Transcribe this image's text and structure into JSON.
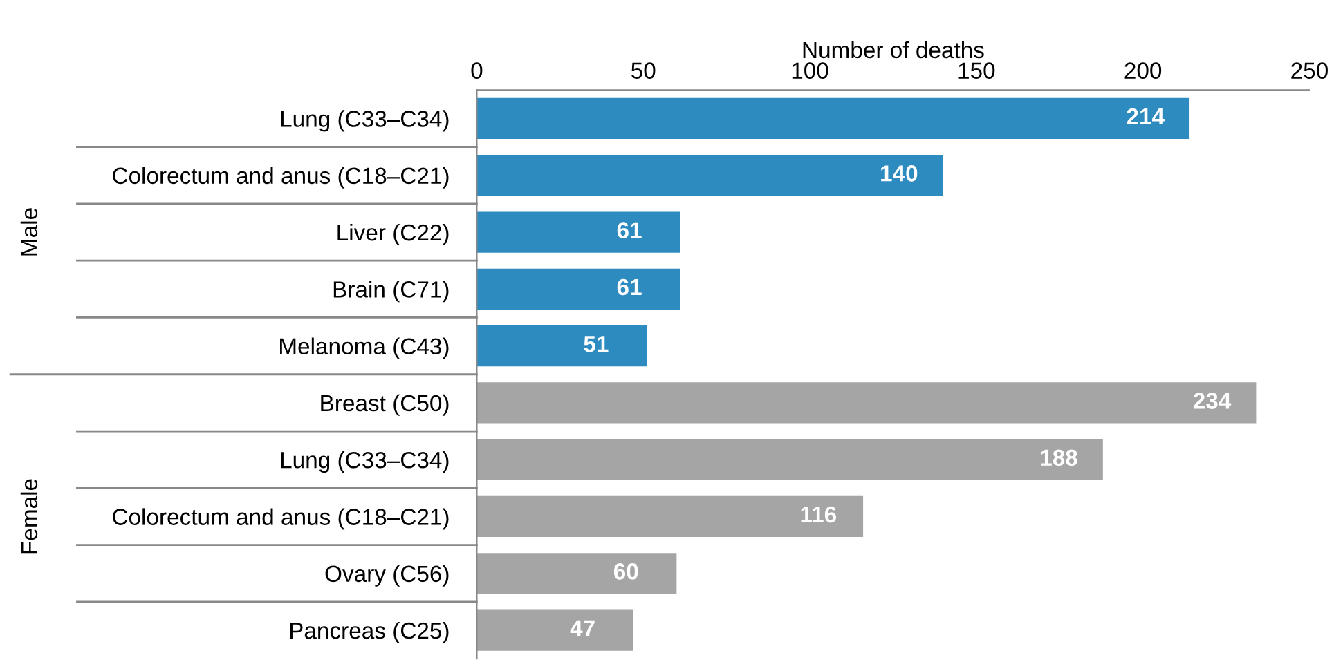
{
  "chart_data": {
    "type": "bar",
    "orientation": "horizontal",
    "xlabel": "Number of deaths",
    "categories": [
      "Lung (C33–C34)",
      "Colorectum and anus (C18–C21)",
      "Liver (C22)",
      "Brain (C71)",
      "Melanoma (C43)",
      "Breast (C50)",
      "Lung (C33–C34)",
      "Colorectum and anus (C18–C21)",
      "Ovary (C56)",
      "Pancreas (C25)"
    ],
    "values": [
      214,
      140,
      61,
      61,
      51,
      234,
      188,
      116,
      60,
      47
    ],
    "colors": [
      "#2e8bc0",
      "#2e8bc0",
      "#2e8bc0",
      "#2e8bc0",
      "#2e8bc0",
      "#a5a5a5",
      "#a5a5a5",
      "#a5a5a5",
      "#a5a5a5",
      "#a5a5a5"
    ],
    "annotations": [
      "Male",
      "Female"
    ],
    "xlim": [
      0,
      250
    ],
    "xticks": [
      0,
      50,
      100,
      150,
      200,
      250
    ],
    "data_labels": true,
    "grid": false
  }
}
